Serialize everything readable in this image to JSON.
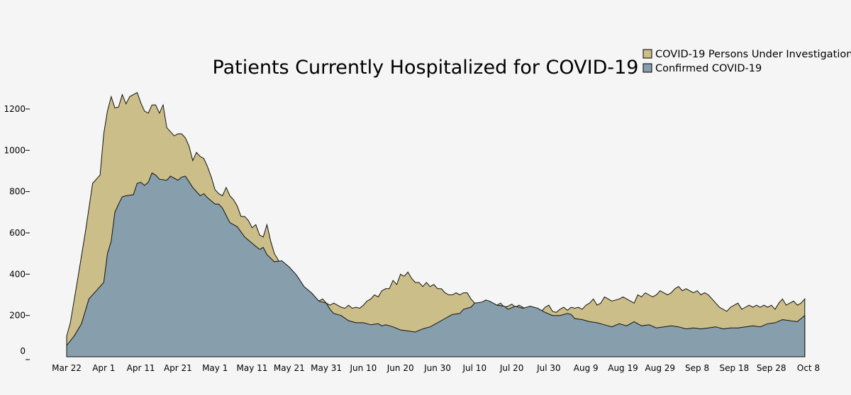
{
  "chart_data": {
    "type": "area",
    "stacked": true,
    "title": "Patients Currently Hospitalized for COVID-19",
    "legend_placement": "top-right",
    "grid": false,
    "xlabel": "",
    "ylabel": "",
    "x_ticks": [
      "Mar 22",
      "Apr 1",
      "Apr 11",
      "Apr 21",
      "May 1",
      "May 11",
      "May 21",
      "May 31",
      "Jun 10",
      "Jun 20",
      "Jun 30",
      "Jul 10",
      "Jul 20",
      "Jul 30",
      "Aug 9",
      "Aug 19",
      "Aug 29",
      "Sep 8",
      "Sep 18",
      "Sep 28",
      "Oct 8"
    ],
    "y_ticks": [
      "0",
      "200",
      "400",
      "600",
      "800",
      "1000",
      "1200"
    ],
    "ylim": [
      0,
      1300
    ],
    "x_range_days": [
      0,
      200
    ],
    "series": [
      {
        "name": "Confirmed COVID-19",
        "color": "#879ead",
        "points": [
          [
            0,
            55
          ],
          [
            2,
            100
          ],
          [
            4,
            160
          ],
          [
            6,
            280
          ],
          [
            8,
            320
          ],
          [
            10,
            360
          ],
          [
            11,
            500
          ],
          [
            12,
            560
          ],
          [
            13,
            700
          ],
          [
            14,
            740
          ],
          [
            15,
            775
          ],
          [
            16,
            780
          ],
          [
            18,
            785
          ],
          [
            19,
            840
          ],
          [
            20,
            845
          ],
          [
            21,
            830
          ],
          [
            22,
            845
          ],
          [
            23,
            890
          ],
          [
            24,
            880
          ],
          [
            25,
            860
          ],
          [
            27,
            855
          ],
          [
            28,
            875
          ],
          [
            30,
            855
          ],
          [
            31,
            870
          ],
          [
            32,
            875
          ],
          [
            34,
            820
          ],
          [
            36,
            780
          ],
          [
            37,
            790
          ],
          [
            38,
            770
          ],
          [
            40,
            740
          ],
          [
            41,
            740
          ],
          [
            42,
            720
          ],
          [
            44,
            650
          ],
          [
            46,
            630
          ],
          [
            48,
            580
          ],
          [
            50,
            550
          ],
          [
            52,
            520
          ],
          [
            53,
            530
          ],
          [
            54,
            495
          ],
          [
            56,
            460
          ],
          [
            58,
            465
          ],
          [
            60,
            435
          ],
          [
            62,
            395
          ],
          [
            64,
            340
          ],
          [
            66,
            310
          ],
          [
            68,
            270
          ],
          [
            70,
            260
          ],
          [
            71,
            230
          ],
          [
            72,
            210
          ],
          [
            74,
            200
          ],
          [
            76,
            175
          ],
          [
            78,
            165
          ],
          [
            80,
            165
          ],
          [
            82,
            155
          ],
          [
            84,
            160
          ],
          [
            85,
            150
          ],
          [
            86,
            155
          ],
          [
            88,
            145
          ],
          [
            90,
            130
          ],
          [
            92,
            125
          ],
          [
            94,
            120
          ],
          [
            96,
            135
          ],
          [
            98,
            145
          ],
          [
            100,
            165
          ],
          [
            102,
            185
          ],
          [
            104,
            205
          ],
          [
            106,
            210
          ],
          [
            107,
            230
          ],
          [
            109,
            240
          ],
          [
            110,
            260
          ],
          [
            112,
            265
          ],
          [
            113,
            275
          ],
          [
            114,
            270
          ],
          [
            116,
            250
          ],
          [
            118,
            245
          ],
          [
            119,
            230
          ],
          [
            121,
            245
          ],
          [
            123,
            235
          ],
          [
            125,
            245
          ],
          [
            127,
            235
          ],
          [
            129,
            215
          ],
          [
            131,
            200
          ],
          [
            133,
            200
          ],
          [
            135,
            210
          ],
          [
            136,
            205
          ],
          [
            137,
            185
          ],
          [
            139,
            180
          ],
          [
            141,
            170
          ],
          [
            143,
            165
          ],
          [
            145,
            155
          ],
          [
            147,
            145
          ],
          [
            149,
            160
          ],
          [
            151,
            150
          ],
          [
            153,
            170
          ],
          [
            155,
            150
          ],
          [
            157,
            155
          ],
          [
            159,
            140
          ],
          [
            161,
            145
          ],
          [
            163,
            150
          ],
          [
            165,
            145
          ],
          [
            167,
            135
          ],
          [
            169,
            140
          ],
          [
            171,
            135
          ],
          [
            173,
            140
          ],
          [
            175,
            145
          ],
          [
            177,
            135
          ],
          [
            179,
            140
          ],
          [
            181,
            140
          ],
          [
            183,
            145
          ],
          [
            185,
            150
          ],
          [
            187,
            145
          ],
          [
            189,
            160
          ],
          [
            191,
            165
          ],
          [
            193,
            180
          ],
          [
            195,
            175
          ],
          [
            197,
            170
          ],
          [
            199,
            200
          ]
        ]
      },
      {
        "name": "COVID-19 Persons Under Investigation",
        "color": "#cbbe88",
        "points": [
          [
            0,
            100
          ],
          [
            1,
            165
          ],
          [
            3,
            380
          ],
          [
            5,
            600
          ],
          [
            7,
            840
          ],
          [
            9,
            880
          ],
          [
            10,
            1080
          ],
          [
            11,
            1190
          ],
          [
            12,
            1260
          ],
          [
            13,
            1205
          ],
          [
            14,
            1210
          ],
          [
            15,
            1270
          ],
          [
            16,
            1225
          ],
          [
            17,
            1260
          ],
          [
            19,
            1280
          ],
          [
            20,
            1230
          ],
          [
            21,
            1190
          ],
          [
            22,
            1180
          ],
          [
            23,
            1220
          ],
          [
            24,
            1220
          ],
          [
            25,
            1180
          ],
          [
            26,
            1220
          ],
          [
            27,
            1110
          ],
          [
            28,
            1090
          ],
          [
            29,
            1070
          ],
          [
            30,
            1080
          ],
          [
            31,
            1080
          ],
          [
            32,
            1060
          ],
          [
            33,
            1020
          ],
          [
            34,
            950
          ],
          [
            35,
            990
          ],
          [
            36,
            970
          ],
          [
            37,
            960
          ],
          [
            38,
            920
          ],
          [
            39,
            870
          ],
          [
            40,
            810
          ],
          [
            41,
            790
          ],
          [
            42,
            780
          ],
          [
            43,
            820
          ],
          [
            44,
            780
          ],
          [
            45,
            760
          ],
          [
            46,
            730
          ],
          [
            47,
            680
          ],
          [
            48,
            680
          ],
          [
            49,
            660
          ],
          [
            50,
            625
          ],
          [
            51,
            640
          ],
          [
            52,
            590
          ],
          [
            53,
            580
          ],
          [
            54,
            640
          ],
          [
            55,
            560
          ],
          [
            56,
            500
          ],
          [
            57,
            470
          ],
          [
            58,
            430
          ],
          [
            59,
            420
          ],
          [
            60,
            390
          ],
          [
            61,
            360
          ],
          [
            62,
            380
          ],
          [
            63,
            330
          ],
          [
            64,
            300
          ],
          [
            65,
            290
          ],
          [
            66,
            310
          ],
          [
            67,
            290
          ],
          [
            68,
            270
          ],
          [
            69,
            280
          ],
          [
            70,
            260
          ],
          [
            71,
            250
          ],
          [
            72,
            260
          ],
          [
            73,
            250
          ],
          [
            74,
            240
          ],
          [
            75,
            235
          ],
          [
            76,
            250
          ],
          [
            77,
            235
          ],
          [
            78,
            240
          ],
          [
            79,
            235
          ],
          [
            80,
            250
          ],
          [
            81,
            270
          ],
          [
            82,
            280
          ],
          [
            83,
            300
          ],
          [
            84,
            290
          ],
          [
            85,
            320
          ],
          [
            86,
            330
          ],
          [
            87,
            330
          ],
          [
            88,
            370
          ],
          [
            89,
            350
          ],
          [
            90,
            400
          ],
          [
            91,
            390
          ],
          [
            92,
            410
          ],
          [
            93,
            380
          ],
          [
            94,
            360
          ],
          [
            95,
            360
          ],
          [
            96,
            340
          ],
          [
            97,
            360
          ],
          [
            98,
            340
          ],
          [
            99,
            350
          ],
          [
            100,
            330
          ],
          [
            101,
            330
          ],
          [
            102,
            310
          ],
          [
            103,
            300
          ],
          [
            104,
            300
          ],
          [
            105,
            310
          ],
          [
            106,
            300
          ],
          [
            107,
            310
          ],
          [
            108,
            310
          ],
          [
            109,
            280
          ],
          [
            110,
            260
          ],
          [
            111,
            250
          ],
          [
            112,
            250
          ],
          [
            113,
            260
          ],
          [
            114,
            240
          ],
          [
            115,
            240
          ],
          [
            116,
            250
          ],
          [
            117,
            260
          ],
          [
            118,
            240
          ],
          [
            119,
            245
          ],
          [
            120,
            255
          ],
          [
            121,
            240
          ],
          [
            122,
            250
          ],
          [
            123,
            240
          ],
          [
            124,
            230
          ],
          [
            125,
            210
          ],
          [
            126,
            220
          ],
          [
            127,
            210
          ],
          [
            128,
            220
          ],
          [
            129,
            240
          ],
          [
            130,
            250
          ],
          [
            131,
            220
          ],
          [
            132,
            215
          ],
          [
            133,
            230
          ],
          [
            134,
            240
          ],
          [
            135,
            225
          ],
          [
            136,
            240
          ],
          [
            137,
            235
          ],
          [
            138,
            240
          ],
          [
            139,
            230
          ],
          [
            140,
            250
          ],
          [
            141,
            260
          ],
          [
            142,
            280
          ],
          [
            143,
            250
          ],
          [
            144,
            260
          ],
          [
            145,
            290
          ],
          [
            146,
            280
          ],
          [
            147,
            270
          ],
          [
            148,
            275
          ],
          [
            149,
            280
          ],
          [
            150,
            290
          ],
          [
            151,
            280
          ],
          [
            152,
            270
          ],
          [
            153,
            260
          ],
          [
            154,
            300
          ],
          [
            155,
            290
          ],
          [
            156,
            310
          ],
          [
            157,
            300
          ],
          [
            158,
            290
          ],
          [
            159,
            300
          ],
          [
            160,
            320
          ],
          [
            161,
            310
          ],
          [
            162,
            300
          ],
          [
            163,
            310
          ],
          [
            164,
            330
          ],
          [
            165,
            340
          ],
          [
            166,
            320
          ],
          [
            167,
            330
          ],
          [
            168,
            320
          ],
          [
            169,
            310
          ],
          [
            170,
            320
          ],
          [
            171,
            300
          ],
          [
            172,
            310
          ],
          [
            173,
            300
          ],
          [
            174,
            280
          ],
          [
            175,
            260
          ],
          [
            176,
            240
          ],
          [
            177,
            230
          ],
          [
            178,
            220
          ],
          [
            179,
            240
          ],
          [
            180,
            250
          ],
          [
            181,
            260
          ],
          [
            182,
            230
          ],
          [
            183,
            240
          ],
          [
            184,
            250
          ],
          [
            185,
            240
          ],
          [
            186,
            250
          ],
          [
            187,
            240
          ],
          [
            188,
            250
          ],
          [
            189,
            240
          ],
          [
            190,
            250
          ],
          [
            191,
            230
          ],
          [
            192,
            260
          ],
          [
            193,
            280
          ],
          [
            194,
            250
          ],
          [
            195,
            260
          ],
          [
            196,
            270
          ],
          [
            197,
            250
          ],
          [
            198,
            260
          ],
          [
            199,
            280
          ]
        ]
      }
    ]
  }
}
